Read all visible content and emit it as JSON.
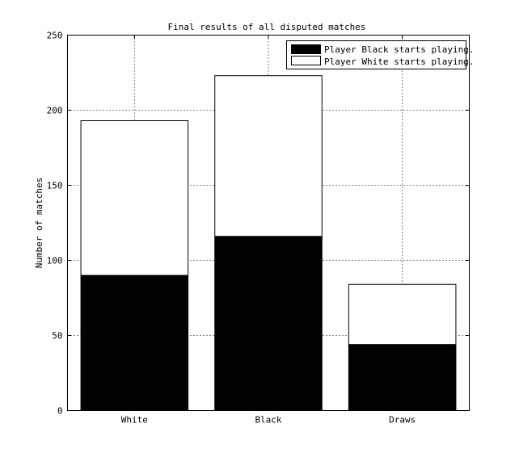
{
  "chart_data": {
    "type": "bar",
    "stacked": true,
    "title": "Final results of all disputed matches",
    "xlabel": "",
    "ylabel": "Number of matches",
    "categories": [
      "White",
      "Black",
      "Draws"
    ],
    "series": [
      {
        "name": "Player Black starts playing.",
        "color": "#000000",
        "values": [
          90,
          116,
          44
        ]
      },
      {
        "name": "Player White starts playing.",
        "color": "#ffffff",
        "values": [
          103,
          107,
          40
        ]
      }
    ],
    "ylim": [
      0,
      250
    ],
    "yticks": [
      "0",
      "50",
      "100",
      "150",
      "200",
      "250"
    ],
    "grid": true,
    "legend_position": "top-right"
  }
}
